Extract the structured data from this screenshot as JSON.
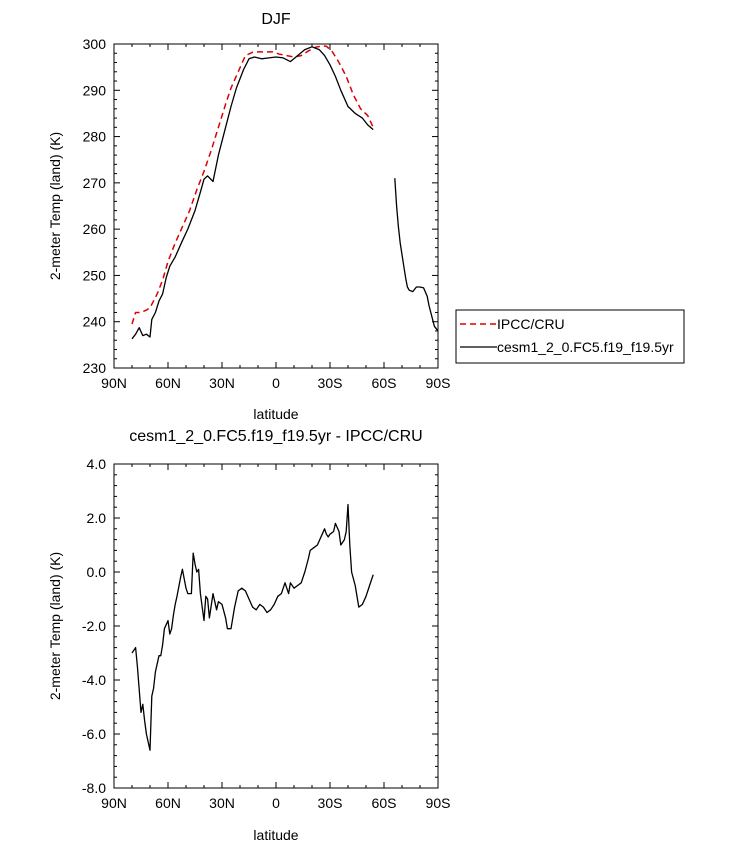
{
  "chart_data": [
    {
      "type": "line",
      "title": "DJF",
      "xlabel": "latitude",
      "ylabel": "2-meter Temp (land) (K)",
      "xlim": [
        90,
        -90
      ],
      "ylim": [
        230,
        300
      ],
      "x_ticks": [
        90,
        60,
        30,
        0,
        -30,
        -60,
        -90
      ],
      "x_tick_labels": [
        "90N",
        "60N",
        "30N",
        "0",
        "30S",
        "60S",
        "90S"
      ],
      "y_ticks": [
        230,
        240,
        250,
        260,
        270,
        280,
        290,
        300
      ],
      "y_tick_labels": [
        "230",
        "240",
        "250",
        "260",
        "270",
        "280",
        "290",
        "300"
      ],
      "legend_position": "right",
      "series": [
        {
          "name": "IPCC/CRU",
          "color": "#dd0000",
          "dash": "dashed",
          "segments": [
            {
              "x": [
                80,
                78,
                75,
                72,
                70,
                68,
                66,
                63,
                60,
                56,
                52,
                48,
                44,
                40,
                36,
                32,
                28,
                25,
                21,
                17,
                13,
                10,
                6,
                2,
                -2,
                -6,
                -10,
                -14,
                -18,
                -22,
                -26,
                -28,
                -31,
                -35,
                -39,
                -43,
                -47,
                -51,
                -54
              ],
              "y": [
                239.5,
                242,
                242,
                242.5,
                243,
                244.5,
                246,
                249,
                253,
                257,
                260.5,
                264,
                268.5,
                272.5,
                277,
                282,
                287,
                290.5,
                294,
                297.5,
                298.2,
                298.3,
                298.3,
                298.3,
                297.8,
                297.5,
                297.2,
                297.5,
                298.5,
                299.3,
                299.6,
                299.5,
                298.5,
                296,
                293,
                289,
                286,
                284.5,
                282
              ]
            }
          ]
        },
        {
          "name": "cesm1_2_0.FC5.f19_f19.5yr",
          "color": "#000000",
          "dash": "solid",
          "segments": [
            {
              "x": [
                80,
                78,
                76,
                74,
                72,
                70,
                69,
                67,
                65,
                63,
                61,
                59,
                56,
                52,
                49,
                45,
                42,
                40,
                38,
                35,
                32,
                28,
                25,
                22,
                18,
                15,
                12,
                8,
                4,
                0,
                -4,
                -8,
                -12,
                -16,
                -20,
                -24,
                -27,
                -30,
                -33,
                -36,
                -40,
                -44,
                -48,
                -51,
                -54
              ],
              "y": [
                236.3,
                237.3,
                238.7,
                237,
                237.3,
                236.7,
                240.5,
                242,
                244.5,
                246,
                249.5,
                252,
                254,
                257.5,
                260,
                264,
                268,
                270.8,
                271.5,
                270.3,
                276,
                282,
                286.5,
                290.5,
                294.5,
                296.8,
                297.2,
                296.8,
                297,
                297.2,
                297,
                296.2,
                297.5,
                298.8,
                299.4,
                298.8,
                297.5,
                295.5,
                293,
                290,
                286.5,
                285,
                284,
                282.5,
                281.5
              ]
            },
            {
              "x": [
                -66,
                -67,
                -68,
                -69,
                -70,
                -71,
                -72,
                -73,
                -74,
                -76,
                -78,
                -80,
                -82,
                -84,
                -85,
                -86,
                -87,
                -88,
                -89,
                -90
              ],
              "y": [
                271,
                265,
                260.5,
                257,
                254.5,
                252,
                249.5,
                247.5,
                246.8,
                246.5,
                247.5,
                247.5,
                247.3,
                245.5,
                243.5,
                242,
                240.5,
                239,
                238.5,
                238
              ]
            }
          ]
        }
      ]
    },
    {
      "type": "line",
      "title": "cesm1_2_0.FC5.f19_f19.5yr - IPCC/CRU",
      "xlabel": "latitude",
      "ylabel": "2-meter Temp (land) (K)",
      "xlim": [
        90,
        -90
      ],
      "ylim": [
        -8.0,
        4.0
      ],
      "x_ticks": [
        90,
        60,
        30,
        0,
        -30,
        -60,
        -90
      ],
      "x_tick_labels": [
        "90N",
        "60N",
        "30N",
        "0",
        "30S",
        "60S",
        "90S"
      ],
      "y_ticks": [
        -8,
        -6,
        -4,
        -2,
        0,
        2,
        4
      ],
      "y_tick_labels": [
        "-8.0",
        "-6.0",
        "-4.0",
        "-2.0",
        "0.0",
        "2.0",
        "4.0"
      ],
      "legend_position": "none",
      "series": [
        {
          "color": "#000000",
          "dash": "solid",
          "segments": [
            {
              "x": [
                80,
                78,
                77,
                75,
                74,
                73,
                72,
                71,
                70,
                69,
                68,
                67,
                65,
                64,
                63,
                62,
                60,
                59,
                58,
                57,
                56,
                55,
                53,
                52,
                50,
                49,
                47,
                46,
                45,
                44,
                43,
                42,
                40,
                39,
                38,
                37,
                35,
                34,
                33,
                32,
                30,
                28,
                27,
                25,
                23,
                21,
                19,
                17,
                15,
                13,
                11,
                9,
                7,
                5,
                3,
                1,
                -1,
                -3,
                -5,
                -7,
                -8,
                -9,
                -10,
                -12,
                -14,
                -16,
                -18,
                -19,
                -21,
                -23,
                -25,
                -27,
                -28,
                -29,
                -30,
                -32,
                -33,
                -35,
                -36,
                -38,
                -39,
                -40,
                -41,
                -42,
                -44,
                -46,
                -48,
                -50,
                -52,
                -54
              ],
              "y": [
                -3.0,
                -2.8,
                -3.5,
                -5.2,
                -4.9,
                -5.5,
                -6.0,
                -6.3,
                -6.6,
                -4.6,
                -4.3,
                -3.7,
                -3.1,
                -3.1,
                -2.7,
                -2.1,
                -1.8,
                -2.3,
                -2.1,
                -1.6,
                -1.2,
                -0.9,
                -0.2,
                0.1,
                -0.6,
                -0.8,
                -0.8,
                0.7,
                0.3,
                0.0,
                0.1,
                -0.8,
                -1.8,
                -0.9,
                -1.0,
                -1.7,
                -0.8,
                -1.1,
                -1.4,
                -1.1,
                -1.2,
                -1.7,
                -2.1,
                -2.1,
                -1.3,
                -0.7,
                -0.6,
                -0.7,
                -1.0,
                -1.3,
                -1.4,
                -1.2,
                -1.3,
                -1.5,
                -1.4,
                -1.2,
                -0.9,
                -0.8,
                -0.4,
                -0.8,
                -0.4,
                -0.5,
                -0.6,
                -0.5,
                -0.4,
                0.0,
                0.5,
                0.8,
                0.9,
                1.0,
                1.3,
                1.6,
                1.4,
                1.3,
                1.4,
                1.5,
                1.8,
                1.5,
                1.0,
                1.2,
                1.5,
                2.5,
                1.0,
                0.0,
                -0.5,
                -1.3,
                -1.2,
                -0.9,
                -0.5,
                -0.1
              ]
            }
          ]
        }
      ]
    }
  ]
}
